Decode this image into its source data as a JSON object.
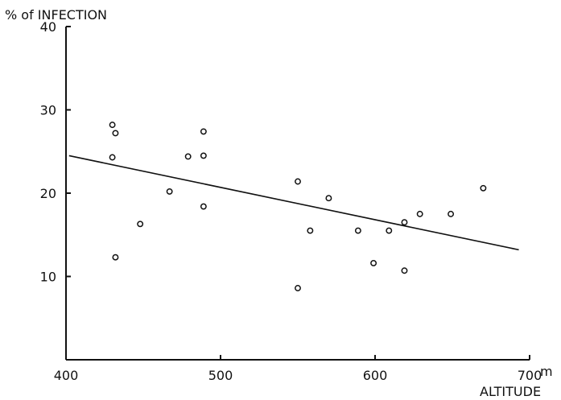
{
  "chart_data": {
    "type": "scatter",
    "title": "",
    "xlabel": "ALTITUDE",
    "ylabel": "% of INFECTION",
    "x_unit": "m",
    "xlim": [
      400,
      700
    ],
    "ylim": [
      0,
      40
    ],
    "x_ticks": [
      400,
      500,
      600,
      700
    ],
    "y_ticks": [
      10,
      20,
      30,
      40
    ],
    "x_tick_labels": [
      "400",
      "500",
      "600",
      "700"
    ],
    "y_tick_labels": [
      "10",
      "20",
      "30",
      "40"
    ],
    "grid": false,
    "legend": "none",
    "colors": {
      "axis": "#111111",
      "points": "#111111",
      "trend": "#111111"
    },
    "series": [
      {
        "points": [
          {
            "x": 430,
            "y": 28.2
          },
          {
            "x": 432,
            "y": 27.2
          },
          {
            "x": 430,
            "y": 24.3
          },
          {
            "x": 432,
            "y": 12.3
          },
          {
            "x": 448,
            "y": 16.3
          },
          {
            "x": 467,
            "y": 20.2
          },
          {
            "x": 479,
            "y": 24.4
          },
          {
            "x": 489,
            "y": 27.4
          },
          {
            "x": 489,
            "y": 24.5
          },
          {
            "x": 489,
            "y": 18.4
          },
          {
            "x": 550,
            "y": 21.4
          },
          {
            "x": 550,
            "y": 8.6
          },
          {
            "x": 558,
            "y": 15.5
          },
          {
            "x": 570,
            "y": 19.4
          },
          {
            "x": 589,
            "y": 15.5
          },
          {
            "x": 599,
            "y": 11.6
          },
          {
            "x": 609,
            "y": 15.5
          },
          {
            "x": 619,
            "y": 16.5
          },
          {
            "x": 619,
            "y": 10.7
          },
          {
            "x": 629,
            "y": 17.5
          },
          {
            "x": 649,
            "y": 17.5
          },
          {
            "x": 670,
            "y": 20.6
          }
        ]
      }
    ],
    "trend_line": {
      "x": [
        402,
        693
      ],
      "y": [
        24.5,
        13.2
      ]
    }
  }
}
